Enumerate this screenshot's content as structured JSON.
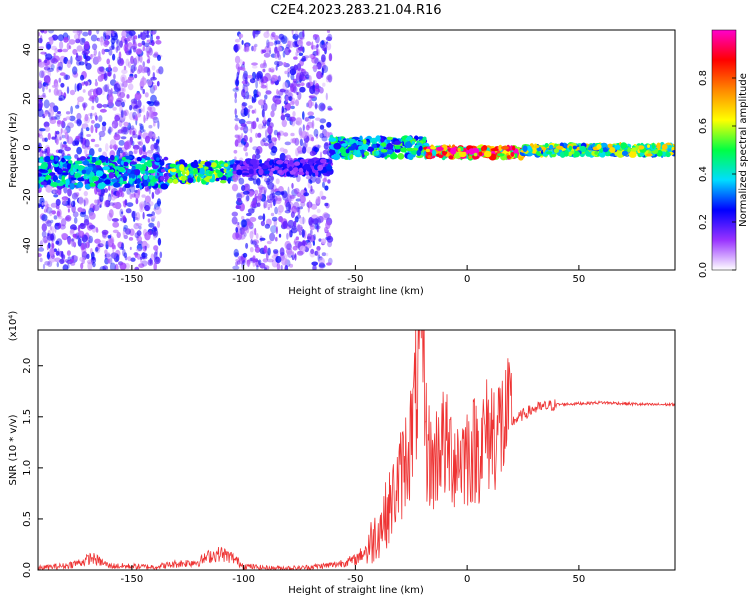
{
  "figure": {
    "title": "C2E4.2023.283.21.04.R16"
  },
  "chart_data": [
    {
      "type": "heatmap",
      "title": "C2E4.2023.283.21.04.R16",
      "xlabel": "Height of straight line (km)",
      "ylabel": "Frequency (Hz)",
      "xlim": [
        -192,
        93
      ],
      "ylim": [
        -50,
        48
      ],
      "x_ticks": [
        -150,
        -100,
        -50,
        0,
        50
      ],
      "y_ticks": [
        -40,
        -20,
        0,
        20,
        40
      ],
      "grid": false,
      "colorbar": {
        "label": "Normalized spectral amplitude",
        "range": [
          0.0,
          1.0
        ],
        "ticks": [
          0.0,
          0.2,
          0.4,
          0.6,
          0.8
        ],
        "colormap": "rainbow",
        "stops": [
          "#ffffff",
          "#9933ff",
          "#0000ff",
          "#00ddff",
          "#00ff44",
          "#ffff00",
          "#ff8800",
          "#ff0000",
          "#ff00cc"
        ]
      },
      "bands": [
        {
          "x": [
            -192,
            -137
          ],
          "center_hz": -10,
          "halfwidth_hz": 6,
          "amplitude": 0.35,
          "noise_band": true
        },
        {
          "x": [
            -137,
            -133
          ],
          "center_hz": -10,
          "halfwidth_hz": 6,
          "amplitude": 0.25,
          "noise_band": false
        },
        {
          "x": [
            -133,
            -104
          ],
          "center_hz": -10,
          "halfwidth_hz": 4,
          "amplitude": 0.45,
          "noise_band": false
        },
        {
          "x": [
            -104,
            -61
          ],
          "center_hz": -8,
          "halfwidth_hz": 3,
          "amplitude": 0.2,
          "noise_band": true
        },
        {
          "x": [
            -61,
            -18
          ],
          "center_hz": 0,
          "halfwidth_hz": 4,
          "amplitude": 0.4,
          "noise_band": false
        },
        {
          "x": [
            -18,
            25
          ],
          "center_hz": -2,
          "halfwidth_hz": 2,
          "amplitude": 0.75,
          "noise_band": false
        },
        {
          "x": [
            25,
            93
          ],
          "center_hz": -1,
          "halfwidth_hz": 2,
          "amplitude": 0.5,
          "noise_band": false
        }
      ]
    },
    {
      "type": "line",
      "xlabel": "Height of straight line (km)",
      "ylabel": "SNR (10 * v/v)",
      "y_multiplier": "(x10⁴)",
      "xlim": [
        -192,
        93
      ],
      "ylim": [
        0,
        2.35
      ],
      "x_ticks": [
        -150,
        -100,
        -50,
        0,
        50
      ],
      "y_ticks": [
        0.0,
        0.5,
        1.0,
        1.5,
        2.0
      ],
      "y_tick_labels": [
        "0.0",
        "0.5",
        "1.0",
        "1.5",
        "2.0"
      ],
      "grid": false,
      "color": "#ee3333",
      "series": [
        {
          "x": [
            -192,
            -180,
            -172,
            -168,
            -160,
            -140,
            -130,
            -120,
            -115,
            -110,
            -105,
            -100,
            -90,
            -75,
            -60,
            -50,
            -45,
            -40,
            -35,
            -30,
            -25,
            -22,
            -20,
            -18,
            -15,
            -12,
            -10,
            -5,
            0,
            5,
            10,
            15,
            20,
            25,
            30,
            35,
            40,
            50,
            60,
            70,
            80,
            93
          ],
          "values": [
            0.02,
            0.04,
            0.08,
            0.12,
            0.04,
            0.03,
            0.06,
            0.08,
            0.14,
            0.16,
            0.12,
            0.04,
            0.02,
            0.02,
            0.05,
            0.1,
            0.2,
            0.38,
            0.6,
            0.9,
            1.3,
            1.9,
            2.3,
            1.2,
            1.0,
            1.3,
            1.2,
            1.1,
            1.15,
            1.2,
            1.35,
            1.4,
            1.45,
            1.52,
            1.58,
            1.6,
            1.62,
            1.63,
            1.64,
            1.63,
            1.62,
            1.62
          ]
        }
      ]
    }
  ]
}
